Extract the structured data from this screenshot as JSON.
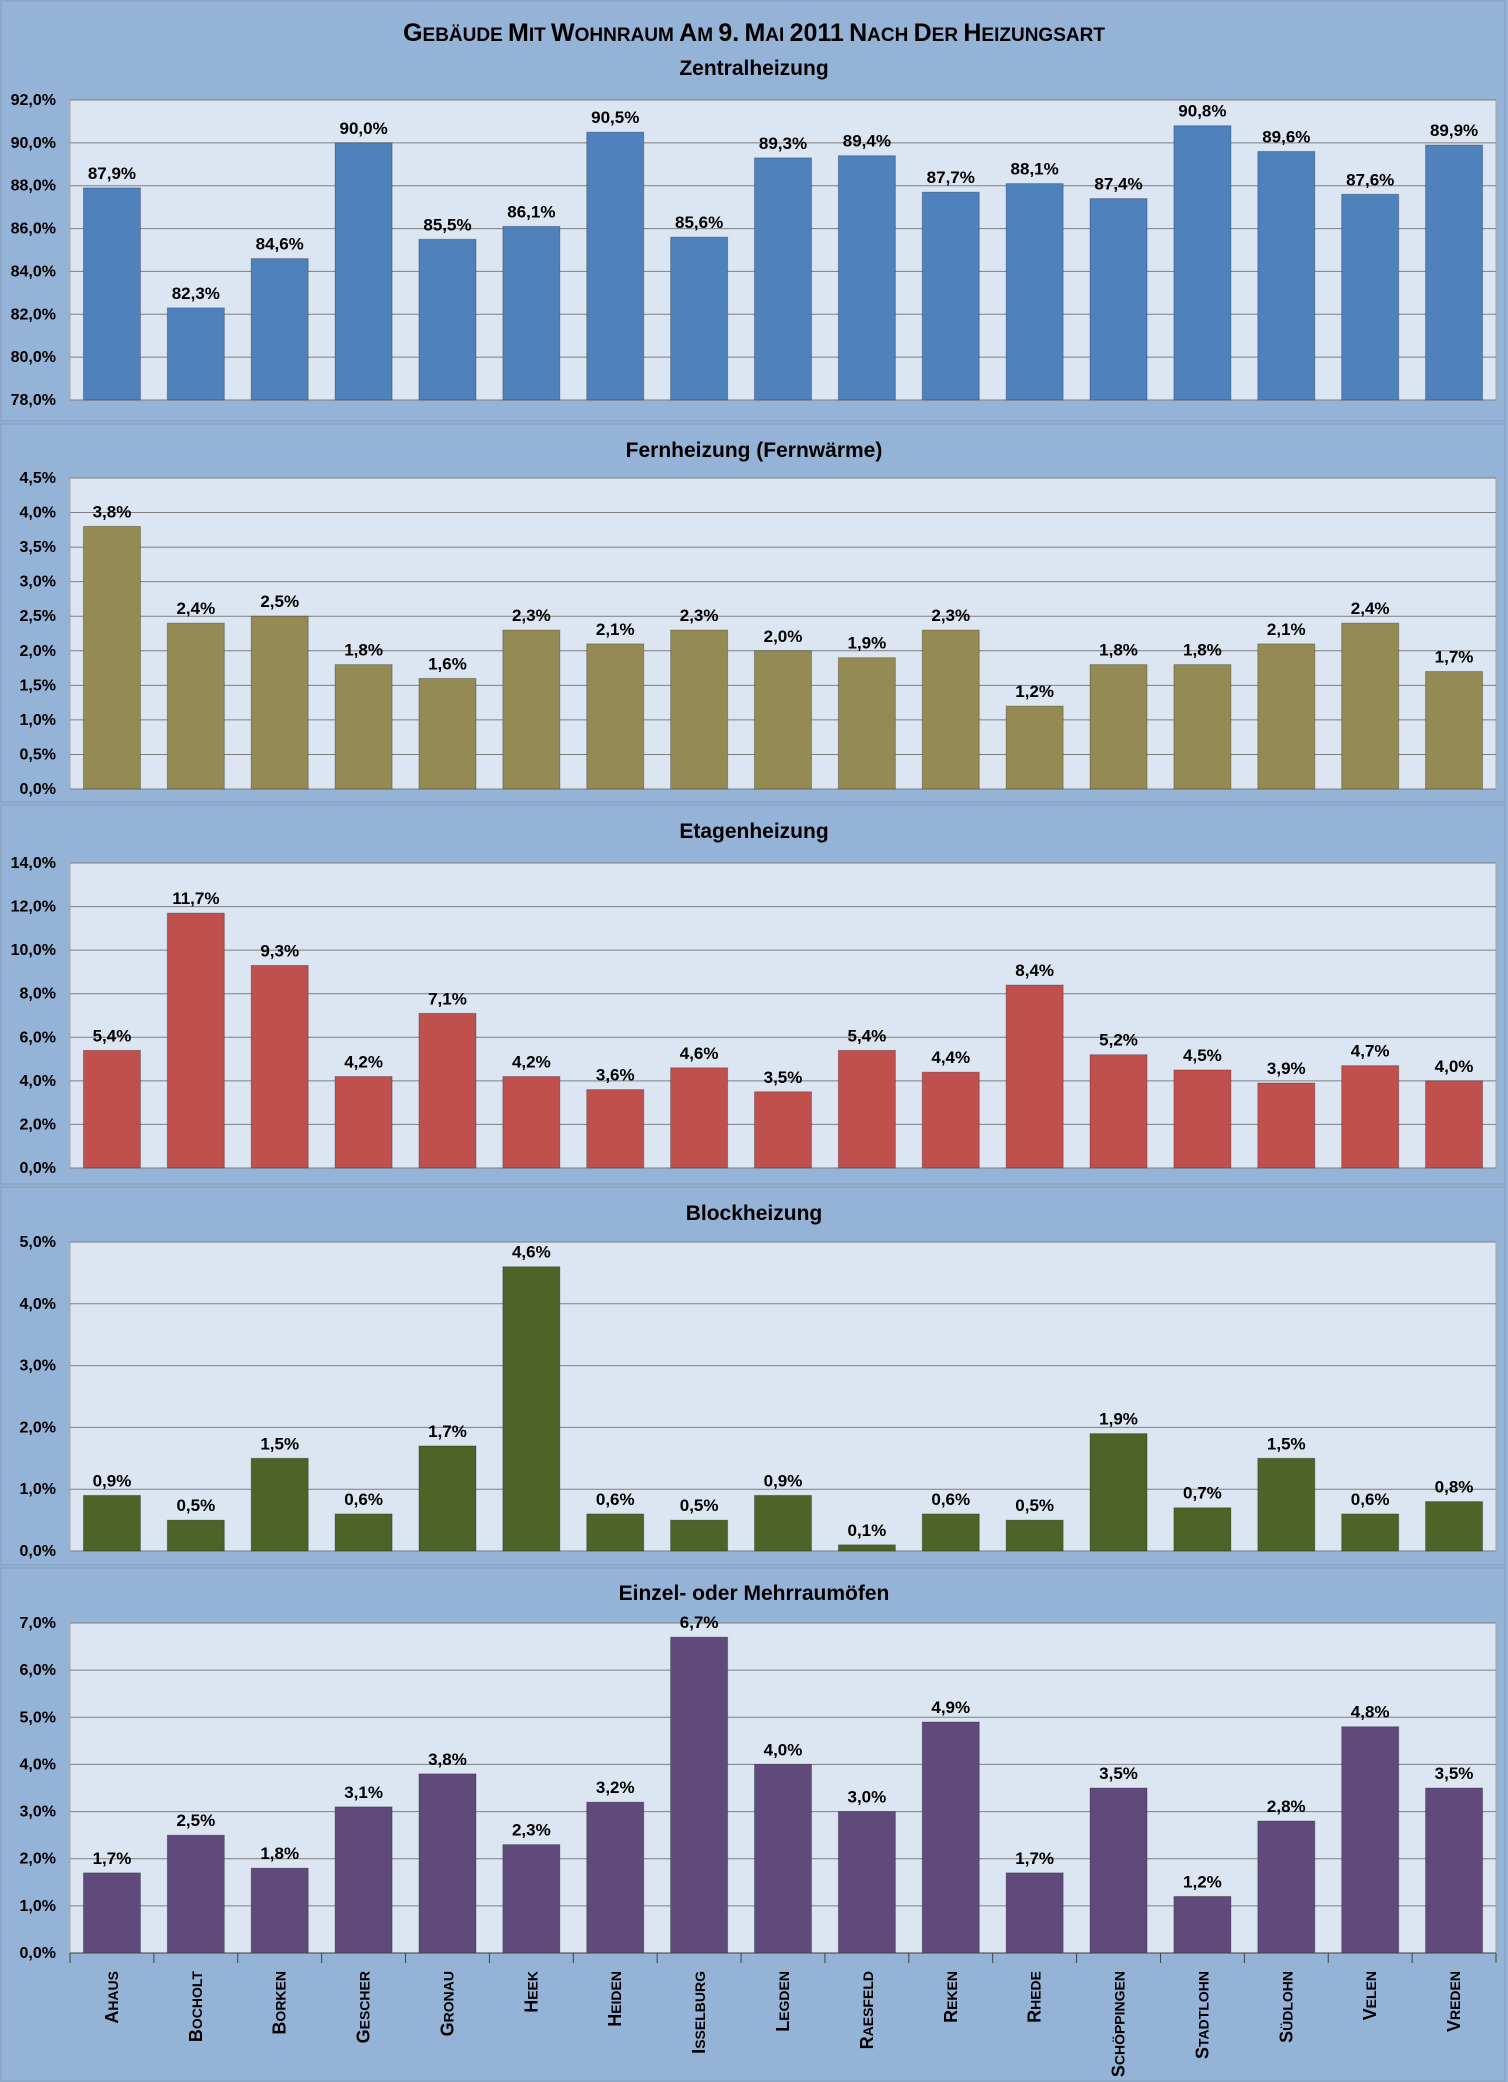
{
  "title": "Gebäude mit Wohnraum am 9. Mai 2011 nach der Heizungsart",
  "categories": [
    "Ahaus",
    "Bocholt",
    "Borken",
    "Gescher",
    "Gronau",
    "Heek",
    "Heiden",
    "Isselburg",
    "Legden",
    "Raesfeld",
    "Reken",
    "Rhede",
    "Schöppingen",
    "Stadtlohn",
    "Südlohn",
    "Velen",
    "Vreden"
  ],
  "colors": {
    "background": "#95b3d7",
    "plot_area": "#dce6f2",
    "gridline": "#7f7f7f",
    "panel_border": "#8ea8c8"
  },
  "chart_data": [
    {
      "type": "bar",
      "title": "Zentralheizung",
      "color": "#4f81bd",
      "categories": [
        "Ahaus",
        "Bocholt",
        "Borken",
        "Gescher",
        "Gronau",
        "Heek",
        "Heiden",
        "Isselburg",
        "Legden",
        "Raesfeld",
        "Reken",
        "Rhede",
        "Schöppingen",
        "Stadtlohn",
        "Südlohn",
        "Velen",
        "Vreden"
      ],
      "values": [
        87.9,
        82.3,
        84.6,
        90.0,
        85.5,
        86.1,
        90.5,
        85.6,
        89.3,
        89.4,
        87.7,
        88.1,
        87.4,
        90.8,
        89.6,
        87.6,
        89.9
      ],
      "value_labels": [
        "87,9%",
        "82,3%",
        "84,6%",
        "90,0%",
        "85,5%",
        "86,1%",
        "90,5%",
        "85,6%",
        "89,3%",
        "89,4%",
        "87,7%",
        "88,1%",
        "87,4%",
        "90,8%",
        "89,6%",
        "87,6%",
        "89,9%"
      ],
      "ylim": [
        78,
        92
      ],
      "yticks": [
        78,
        80,
        82,
        84,
        86,
        88,
        90,
        92
      ],
      "ytick_labels": [
        "78,0%",
        "80,0%",
        "82,0%",
        "84,0%",
        "86,0%",
        "88,0%",
        "90,0%",
        "92,0%"
      ],
      "grid": true
    },
    {
      "type": "bar",
      "title": "Fernheizung (Fernwärme)",
      "color": "#948a54",
      "categories": [
        "Ahaus",
        "Bocholt",
        "Borken",
        "Gescher",
        "Gronau",
        "Heek",
        "Heiden",
        "Isselburg",
        "Legden",
        "Raesfeld",
        "Reken",
        "Rhede",
        "Schöppingen",
        "Stadtlohn",
        "Südlohn",
        "Velen",
        "Vreden"
      ],
      "values": [
        3.8,
        2.4,
        2.5,
        1.8,
        1.6,
        2.3,
        2.1,
        2.3,
        2.0,
        1.9,
        2.3,
        1.2,
        1.8,
        1.8,
        2.1,
        2.4,
        1.7
      ],
      "value_labels": [
        "3,8%",
        "2,4%",
        "2,5%",
        "1,8%",
        "1,6%",
        "2,3%",
        "2,1%",
        "2,3%",
        "2,0%",
        "1,9%",
        "2,3%",
        "1,2%",
        "1,8%",
        "1,8%",
        "2,1%",
        "2,4%",
        "1,7%"
      ],
      "ylim": [
        0,
        4.5
      ],
      "yticks": [
        0,
        0.5,
        1.0,
        1.5,
        2.0,
        2.5,
        3.0,
        3.5,
        4.0,
        4.5
      ],
      "ytick_labels": [
        "0,0%",
        "0,5%",
        "1,0%",
        "1,5%",
        "2,0%",
        "2,5%",
        "3,0%",
        "3,5%",
        "4,0%",
        "4,5%"
      ],
      "grid": true
    },
    {
      "type": "bar",
      "title": "Etagenheizung",
      "color": "#c0504d",
      "categories": [
        "Ahaus",
        "Bocholt",
        "Borken",
        "Gescher",
        "Gronau",
        "Heek",
        "Heiden",
        "Isselburg",
        "Legden",
        "Raesfeld",
        "Reken",
        "Rhede",
        "Schöppingen",
        "Stadtlohn",
        "Südlohn",
        "Velen",
        "Vreden"
      ],
      "values": [
        5.4,
        11.7,
        9.3,
        4.2,
        7.1,
        4.2,
        3.6,
        4.6,
        3.5,
        5.4,
        4.4,
        8.4,
        5.2,
        4.5,
        3.9,
        4.7,
        4.0
      ],
      "value_labels": [
        "5,4%",
        "11,7%",
        "9,3%",
        "4,2%",
        "7,1%",
        "4,2%",
        "3,6%",
        "4,6%",
        "3,5%",
        "5,4%",
        "4,4%",
        "8,4%",
        "5,2%",
        "4,5%",
        "3,9%",
        "4,7%",
        "4,0%"
      ],
      "ylim": [
        0,
        14
      ],
      "yticks": [
        0,
        2,
        4,
        6,
        8,
        10,
        12,
        14
      ],
      "ytick_labels": [
        "0,0%",
        "2,0%",
        "4,0%",
        "6,0%",
        "8,0%",
        "10,0%",
        "12,0%",
        "14,0%"
      ],
      "grid": true
    },
    {
      "type": "bar",
      "title": "Blockheizung",
      "color": "#4f6228",
      "categories": [
        "Ahaus",
        "Bocholt",
        "Borken",
        "Gescher",
        "Gronau",
        "Heek",
        "Heiden",
        "Isselburg",
        "Legden",
        "Raesfeld",
        "Reken",
        "Rhede",
        "Schöppingen",
        "Stadtlohn",
        "Südlohn",
        "Velen",
        "Vreden"
      ],
      "values": [
        0.9,
        0.5,
        1.5,
        0.6,
        1.7,
        4.6,
        0.6,
        0.5,
        0.9,
        0.1,
        0.6,
        0.5,
        1.9,
        0.7,
        1.5,
        0.6,
        0.8
      ],
      "value_labels": [
        "0,9%",
        "0,5%",
        "1,5%",
        "0,6%",
        "1,7%",
        "4,6%",
        "0,6%",
        "0,5%",
        "0,9%",
        "0,1%",
        "0,6%",
        "0,5%",
        "1,9%",
        "0,7%",
        "1,5%",
        "0,6%",
        "0,8%"
      ],
      "ylim": [
        0,
        5
      ],
      "yticks": [
        0,
        1,
        2,
        3,
        4,
        5
      ],
      "ytick_labels": [
        "0,0%",
        "1,0%",
        "2,0%",
        "3,0%",
        "4,0%",
        "5,0%"
      ],
      "grid": true
    },
    {
      "type": "bar",
      "title": "Einzel- oder Mehrraumöfen",
      "color": "#604a7b",
      "categories": [
        "Ahaus",
        "Bocholt",
        "Borken",
        "Gescher",
        "Gronau",
        "Heek",
        "Heiden",
        "Isselburg",
        "Legden",
        "Raesfeld",
        "Reken",
        "Rhede",
        "Schöppingen",
        "Stadtlohn",
        "Südlohn",
        "Velen",
        "Vreden"
      ],
      "values": [
        1.7,
        2.5,
        1.8,
        3.1,
        3.8,
        2.3,
        3.2,
        6.7,
        4.0,
        3.0,
        4.9,
        1.7,
        3.5,
        1.2,
        2.8,
        4.8,
        3.5
      ],
      "value_labels": [
        "1,7%",
        "2,5%",
        "1,8%",
        "3,1%",
        "3,8%",
        "2,3%",
        "3,2%",
        "6,7%",
        "4,0%",
        "3,0%",
        "4,9%",
        "1,7%",
        "3,5%",
        "1,2%",
        "2,8%",
        "4,8%",
        "3,5%"
      ],
      "ylim": [
        0,
        7
      ],
      "yticks": [
        0,
        1,
        2,
        3,
        4,
        5,
        6,
        7
      ],
      "ytick_labels": [
        "0,0%",
        "1,0%",
        "2,0%",
        "3,0%",
        "4,0%",
        "5,0%",
        "6,0%",
        "7,0%"
      ],
      "grid": true
    }
  ]
}
